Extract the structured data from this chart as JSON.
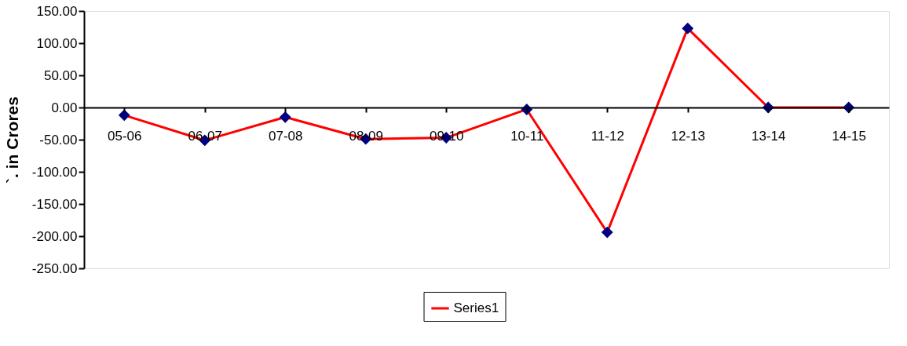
{
  "chart_data": {
    "type": "line",
    "ylabel": "`. in Crores",
    "categories": [
      "05-06",
      "06-07",
      "07-08",
      "08-09",
      "09-10",
      "10-11",
      "11-12",
      "12-13",
      "13-14",
      "14-15"
    ],
    "series": [
      {
        "name": "Series1",
        "color": "#ff0000",
        "values": [
          -12,
          -51,
          -15,
          -49,
          -47,
          -3,
          -194,
          123,
          0,
          0
        ]
      }
    ],
    "ylim": [
      -250,
      150
    ],
    "yticks": [
      {
        "value": -250,
        "label": "-250.00"
      },
      {
        "value": -200,
        "label": "-200.00"
      },
      {
        "value": -150,
        "label": "-150.00"
      },
      {
        "value": -100,
        "label": "-100.00"
      },
      {
        "value": -50,
        "label": "-50.00"
      },
      {
        "value": 0,
        "label": "0.00"
      },
      {
        "value": 50,
        "label": "50.00"
      },
      {
        "value": 100,
        "label": "100.00"
      },
      {
        "value": 150,
        "label": "150.00"
      }
    ],
    "grid": false,
    "legend": "bottom",
    "marker": "diamond",
    "line_style": "solid"
  }
}
